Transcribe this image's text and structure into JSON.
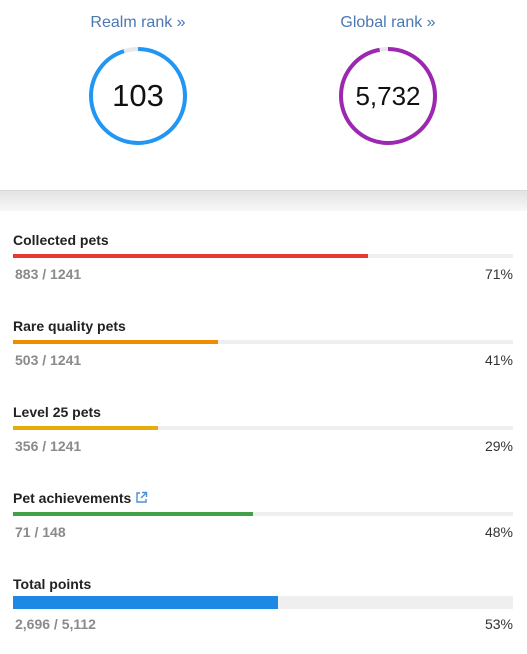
{
  "ranks": {
    "realm": {
      "label": "Realm rank »",
      "value": "103",
      "color": "#2196f3",
      "progress": 0.95
    },
    "global": {
      "label": "Global rank »",
      "value": "5,732",
      "color": "#9c27b0",
      "progress": 0.97
    }
  },
  "stats": [
    {
      "label": "Collected pets",
      "count": "883 / 1241",
      "percent": "71%",
      "fraction": 0.71,
      "color": "#e53935"
    },
    {
      "label": "Rare quality pets",
      "count": "503 / 1241",
      "percent": "41%",
      "fraction": 0.41,
      "color": "#f08c00"
    },
    {
      "label": "Level 25 pets",
      "count": "356 / 1241",
      "percent": "29%",
      "fraction": 0.29,
      "color": "#e8ab0c"
    },
    {
      "label": "Pet achievements",
      "count": "71 / 148",
      "percent": "48%",
      "fraction": 0.48,
      "color": "#43a047",
      "icon": "external-link-icon"
    },
    {
      "label": "Total points",
      "count": "2,696 / 5,112",
      "percent": "53%",
      "fraction": 0.53,
      "color": "#1e88e5"
    }
  ]
}
